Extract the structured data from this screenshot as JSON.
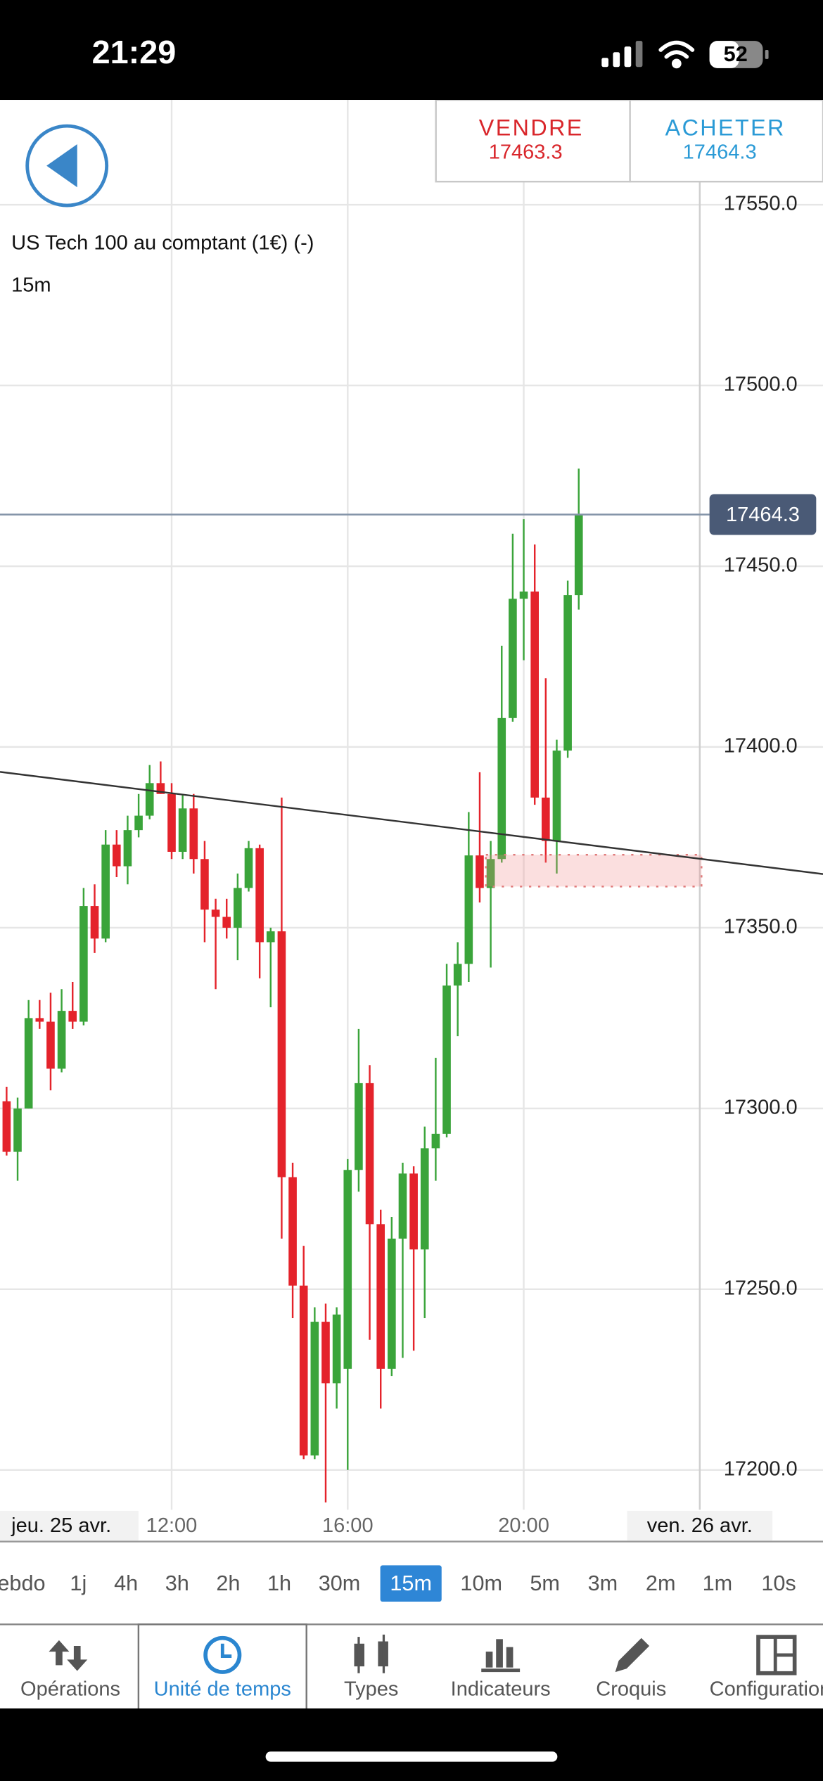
{
  "status_bar": {
    "time": "21:29",
    "battery": "52"
  },
  "trade": {
    "sell": {
      "label": "VENDRE",
      "price": "17463.3"
    },
    "buy": {
      "label": "ACHETER",
      "price": "17464.3"
    }
  },
  "chart_data": {
    "type": "candlestick",
    "title": "US Tech 100 au comptant (1€) (-)",
    "subtitle": "15m",
    "x_start_label": "jeu. 25 avr.",
    "x": [
      8.25,
      8.5,
      8.75,
      9,
      9.25,
      9.5,
      9.75,
      10,
      10.25,
      10.5,
      10.75,
      11,
      11.25,
      11.5,
      11.75,
      12,
      12.25,
      12.5,
      12.75,
      13,
      13.25,
      13.5,
      13.75,
      14,
      14.25,
      14.5,
      14.75,
      15,
      15.25,
      15.5,
      15.75,
      16,
      16.25,
      16.5,
      16.75,
      17,
      17.25,
      17.5,
      17.75,
      18,
      18.25,
      18.5,
      18.75,
      19,
      19.25,
      19.5,
      19.75,
      20,
      20.25,
      20.5,
      20.75,
      21,
      21.25
    ],
    "open": [
      17302,
      17288,
      17300,
      17325,
      17324,
      17311,
      17327,
      17324,
      17356,
      17347,
      17373,
      17367,
      17377,
      17381,
      17390,
      17387,
      17371,
      17383,
      17369,
      17355,
      17353,
      17350,
      17361,
      17372,
      17346,
      17349,
      17281,
      17251,
      17204,
      17241,
      17224,
      17228,
      17283,
      17307,
      17268,
      17228,
      17264,
      17282,
      17261,
      17289,
      17293,
      17334,
      17340,
      17370,
      17361,
      17369,
      17408,
      17441,
      17443,
      17386,
      17374,
      17399,
      17442
    ],
    "high": [
      17306,
      17303,
      17330,
      17330,
      17332,
      17333,
      17335,
      17361,
      17362,
      17377,
      17377,
      17381,
      17387,
      17395,
      17396,
      17390,
      17387,
      17387,
      17374,
      17358,
      17358,
      17365,
      17374,
      17373,
      17350,
      17386,
      17285,
      17262,
      17245,
      17246,
      17245,
      17286,
      17322,
      17312,
      17272,
      17270,
      17285,
      17284,
      17295,
      17314,
      17340,
      17346,
      17382,
      17393,
      17374,
      17428,
      17459,
      17463,
      17456,
      17419,
      17402,
      17446,
      17477
    ],
    "low": [
      17287,
      17280,
      17300,
      17322,
      17305,
      17310,
      17322,
      17323,
      17343,
      17346,
      17364,
      17362,
      17375,
      17380,
      17387,
      17369,
      17369,
      17365,
      17346,
      17333,
      17347,
      17341,
      17360,
      17336,
      17328,
      17264,
      17242,
      17203,
      17203,
      17191,
      17217,
      17200,
      17277,
      17236,
      17217,
      17226,
      17231,
      17233,
      17242,
      17280,
      17292,
      17320,
      17335,
      17357,
      17339,
      17368,
      17407,
      17424,
      17384,
      17368,
      17365,
      17397,
      17438
    ],
    "close": [
      17288,
      17300,
      17325,
      17324,
      17311,
      17327,
      17324,
      17356,
      17347,
      17373,
      17367,
      17377,
      17381,
      17390,
      17387,
      17371,
      17383,
      17369,
      17355,
      17353,
      17350,
      17361,
      17372,
      17346,
      17349,
      17281,
      17251,
      17204,
      17241,
      17224,
      17243,
      17283,
      17307,
      17268,
      17228,
      17264,
      17282,
      17261,
      17289,
      17293,
      17334,
      17340,
      17370,
      17361,
      17369,
      17408,
      17441,
      17443,
      17386,
      17374,
      17399,
      17442,
      17464.3
    ],
    "up_color": "#3aa43a",
    "down_color": "#e4232b",
    "current_price": 17464.3,
    "xlim": [
      8.1,
      26.8
    ],
    "xticks": [
      {
        "value": 12,
        "label": "12:00"
      },
      {
        "value": 16,
        "label": "16:00"
      },
      {
        "value": 20,
        "label": "20:00"
      },
      {
        "value": 24,
        "label": "ven. 26 avr."
      }
    ],
    "ylim": [
      17189,
      17579
    ],
    "yticks": [
      {
        "value": 17200,
        "label": "17200.0"
      },
      {
        "value": 17250,
        "label": "17250.0"
      },
      {
        "value": 17300,
        "label": "17300.0"
      },
      {
        "value": 17350,
        "label": "17350.0"
      },
      {
        "value": 17400,
        "label": "17400.0"
      },
      {
        "value": 17450,
        "label": "17450.0"
      },
      {
        "value": 17500,
        "label": "17500.0"
      },
      {
        "value": 17550,
        "label": "17550.0"
      }
    ],
    "grid": true
  },
  "timeframes": {
    "items": [
      "Hebdo",
      "1j",
      "4h",
      "3h",
      "2h",
      "1h",
      "30m",
      "15m",
      "10m",
      "5m",
      "3m",
      "2m",
      "1m",
      "10s"
    ],
    "selected": "15m"
  },
  "tabs": {
    "items": [
      "Opérations",
      "Unité de temps",
      "Types",
      "Indicateurs",
      "Croquis",
      "Configuration"
    ],
    "selected": "Unité de temps"
  }
}
